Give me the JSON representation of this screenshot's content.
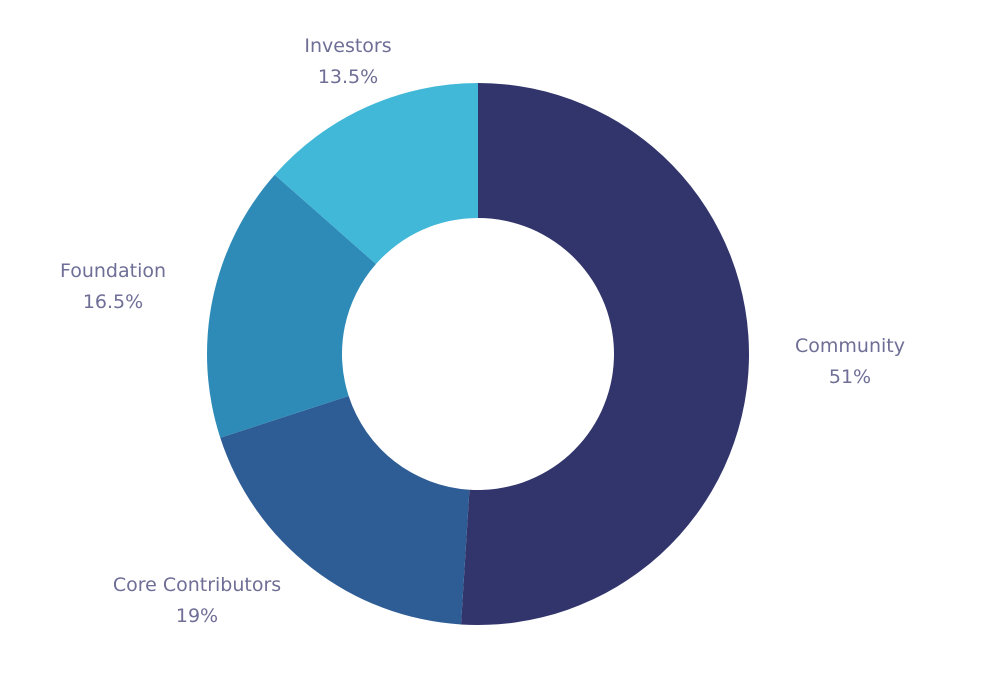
{
  "chart_data": {
    "type": "pie",
    "variant": "donut",
    "title": "",
    "series": [
      {
        "name": "Community",
        "value": 51,
        "value_label": "51%",
        "color": "#32356b"
      },
      {
        "name": "Core Contributors",
        "value": 19,
        "value_label": "19%",
        "color": "#2e5d95"
      },
      {
        "name": "Foundation",
        "value": 16.5,
        "value_label": "16.5%",
        "color": "#2e8bb8"
      },
      {
        "name": "Investors",
        "value": 13.5,
        "value_label": "13.5%",
        "color": "#41b8d7"
      }
    ],
    "label_color": "#6e6e96",
    "legend": "none"
  }
}
